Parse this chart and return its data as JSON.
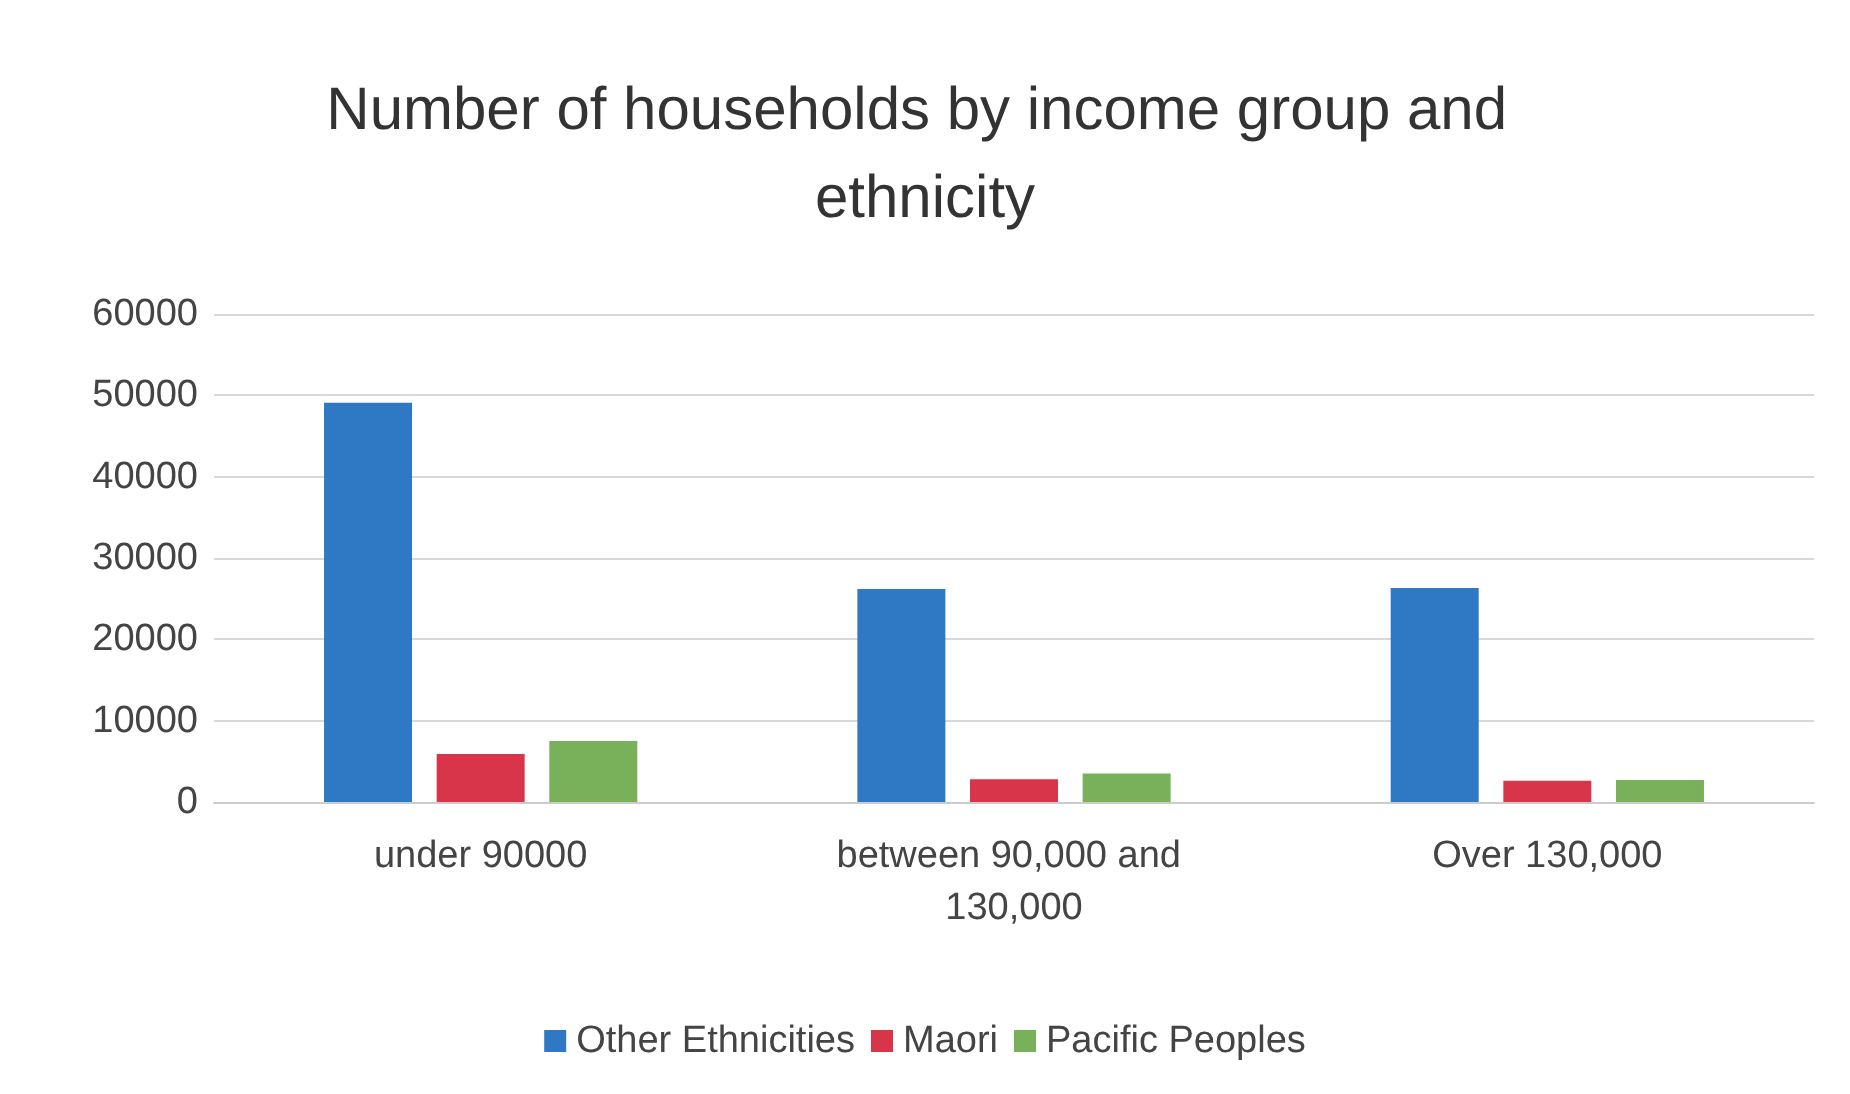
{
  "chart_data": {
    "type": "bar",
    "title": "Number of households by income group and ethnicity",
    "categories": [
      "under 90000",
      "between 90,000 and 130,000",
      "Over 130,000"
    ],
    "series": [
      {
        "name": "Other Ethnicities",
        "color": "#2f78c4",
        "values": [
          49100,
          26200,
          26300
        ]
      },
      {
        "name": "Maori",
        "color": "#d8344a",
        "values": [
          5900,
          2800,
          2600
        ]
      },
      {
        "name": "Pacific Peoples",
        "color": "#79b05a",
        "values": [
          7500,
          3500,
          2700
        ]
      }
    ],
    "ylim": [
      0,
      60000
    ],
    "yticks": [
      0,
      10000,
      20000,
      30000,
      40000,
      50000,
      60000
    ],
    "grid": "y",
    "legend": "bottom"
  }
}
